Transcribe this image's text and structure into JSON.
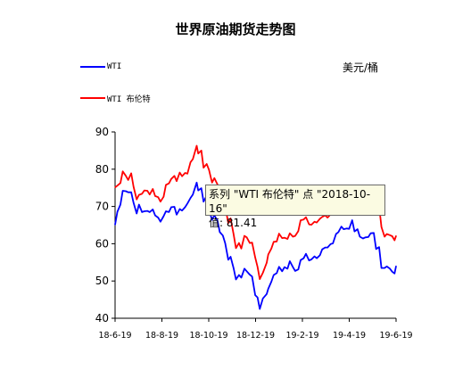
{
  "chart_data": {
    "type": "line",
    "title": "世界原油期货走势图",
    "unit": "美元/桶",
    "xlabel": "",
    "ylabel": "",
    "ylim": [
      40,
      90
    ],
    "yticks": [
      40,
      50,
      60,
      70,
      80,
      90
    ],
    "xticks": [
      "18-6-19",
      "18-8-19",
      "18-10-19",
      "18-12-19",
      "19-2-19",
      "19-4-19",
      "19-6-19"
    ],
    "x_range": [
      "2018-06-19",
      "2019-06-19"
    ],
    "grid": false,
    "legend_position": "top-left",
    "series": [
      {
        "name": "WTI",
        "color": "#0000ff",
        "points": [
          [
            "2018-06-19",
            65.1
          ],
          [
            "2018-06-22",
            68.6
          ],
          [
            "2018-06-26",
            70.5
          ],
          [
            "2018-06-29",
            74.2
          ],
          [
            "2018-07-03",
            74.1
          ],
          [
            "2018-07-06",
            73.8
          ],
          [
            "2018-07-10",
            73.8
          ],
          [
            "2018-07-13",
            71.0
          ],
          [
            "2018-07-17",
            68.1
          ],
          [
            "2018-07-20",
            70.5
          ],
          [
            "2018-07-24",
            68.5
          ],
          [
            "2018-07-27",
            68.7
          ],
          [
            "2018-07-31",
            68.8
          ],
          [
            "2018-08-03",
            68.5
          ],
          [
            "2018-08-07",
            69.2
          ],
          [
            "2018-08-10",
            67.6
          ],
          [
            "2018-08-14",
            67.0
          ],
          [
            "2018-08-17",
            65.9
          ],
          [
            "2018-08-21",
            67.4
          ],
          [
            "2018-08-24",
            68.7
          ],
          [
            "2018-08-28",
            68.5
          ],
          [
            "2018-08-31",
            69.8
          ],
          [
            "2018-09-04",
            69.9
          ],
          [
            "2018-09-07",
            67.8
          ],
          [
            "2018-09-11",
            69.3
          ],
          [
            "2018-09-14",
            68.9
          ],
          [
            "2018-09-18",
            69.8
          ],
          [
            "2018-09-21",
            70.8
          ],
          [
            "2018-09-25",
            72.3
          ],
          [
            "2018-09-28",
            73.2
          ],
          [
            "2018-10-03",
            76.4
          ],
          [
            "2018-10-05",
            74.3
          ],
          [
            "2018-10-09",
            74.9
          ],
          [
            "2018-10-12",
            71.3
          ],
          [
            "2018-10-16",
            72.9
          ],
          [
            "2018-10-19",
            69.1
          ],
          [
            "2018-10-23",
            66.4
          ],
          [
            "2018-10-26",
            67.6
          ],
          [
            "2018-10-30",
            66.2
          ],
          [
            "2018-11-02",
            63.1
          ],
          [
            "2018-11-06",
            62.2
          ],
          [
            "2018-11-09",
            60.2
          ],
          [
            "2018-11-13",
            55.7
          ],
          [
            "2018-11-16",
            56.5
          ],
          [
            "2018-11-20",
            53.4
          ],
          [
            "2018-11-23",
            50.4
          ],
          [
            "2018-11-27",
            51.6
          ],
          [
            "2018-11-30",
            50.9
          ],
          [
            "2018-12-04",
            53.3
          ],
          [
            "2018-12-07",
            52.6
          ],
          [
            "2018-12-11",
            51.7
          ],
          [
            "2018-12-14",
            51.2
          ],
          [
            "2018-12-18",
            46.2
          ],
          [
            "2018-12-21",
            45.6
          ],
          [
            "2018-12-24",
            42.5
          ],
          [
            "2018-12-28",
            45.3
          ],
          [
            "2019-01-02",
            46.5
          ],
          [
            "2019-01-04",
            47.9
          ],
          [
            "2019-01-08",
            49.8
          ],
          [
            "2019-01-11",
            51.6
          ],
          [
            "2019-01-15",
            52.1
          ],
          [
            "2019-01-18",
            53.8
          ],
          [
            "2019-01-22",
            52.6
          ],
          [
            "2019-01-25",
            53.7
          ],
          [
            "2019-01-29",
            53.3
          ],
          [
            "2019-02-01",
            55.3
          ],
          [
            "2019-02-05",
            53.7
          ],
          [
            "2019-02-08",
            52.7
          ],
          [
            "2019-02-12",
            53.1
          ],
          [
            "2019-02-15",
            55.6
          ],
          [
            "2019-02-19",
            56.1
          ],
          [
            "2019-02-22",
            57.3
          ],
          [
            "2019-02-26",
            55.5
          ],
          [
            "2019-03-01",
            55.8
          ],
          [
            "2019-03-05",
            56.6
          ],
          [
            "2019-03-08",
            56.1
          ],
          [
            "2019-03-12",
            56.9
          ],
          [
            "2019-03-15",
            58.5
          ],
          [
            "2019-03-19",
            59.0
          ],
          [
            "2019-03-22",
            59.0
          ],
          [
            "2019-03-26",
            59.9
          ],
          [
            "2019-03-29",
            60.1
          ],
          [
            "2019-04-02",
            62.6
          ],
          [
            "2019-04-05",
            63.1
          ],
          [
            "2019-04-09",
            64.6
          ],
          [
            "2019-04-12",
            63.9
          ],
          [
            "2019-04-16",
            64.1
          ],
          [
            "2019-04-19",
            64.0
          ],
          [
            "2019-04-23",
            66.3
          ],
          [
            "2019-04-26",
            63.3
          ],
          [
            "2019-04-30",
            63.9
          ],
          [
            "2019-05-03",
            61.9
          ],
          [
            "2019-05-07",
            61.4
          ],
          [
            "2019-05-10",
            61.7
          ],
          [
            "2019-05-14",
            61.8
          ],
          [
            "2019-05-17",
            62.8
          ],
          [
            "2019-05-21",
            62.9
          ],
          [
            "2019-05-24",
            58.6
          ],
          [
            "2019-05-28",
            59.1
          ],
          [
            "2019-05-31",
            53.5
          ],
          [
            "2019-06-04",
            53.5
          ],
          [
            "2019-06-07",
            53.9
          ],
          [
            "2019-06-11",
            53.3
          ],
          [
            "2019-06-14",
            52.5
          ],
          [
            "2019-06-17",
            52.0
          ],
          [
            "2019-06-19",
            54.0
          ]
        ]
      },
      {
        "name": "WTI 布伦特",
        "color": "#ff0000",
        "points": [
          [
            "2018-06-19",
            75.1
          ],
          [
            "2018-06-22",
            75.6
          ],
          [
            "2018-06-26",
            76.3
          ],
          [
            "2018-06-29",
            79.4
          ],
          [
            "2018-07-03",
            78.2
          ],
          [
            "2018-07-06",
            77.1
          ],
          [
            "2018-07-10",
            78.9
          ],
          [
            "2018-07-13",
            75.3
          ],
          [
            "2018-07-17",
            71.9
          ],
          [
            "2018-07-20",
            73.1
          ],
          [
            "2018-07-24",
            73.4
          ],
          [
            "2018-07-27",
            74.3
          ],
          [
            "2018-07-31",
            74.2
          ],
          [
            "2018-08-03",
            73.2
          ],
          [
            "2018-08-07",
            74.7
          ],
          [
            "2018-08-10",
            72.8
          ],
          [
            "2018-08-14",
            72.5
          ],
          [
            "2018-08-17",
            71.3
          ],
          [
            "2018-08-21",
            72.6
          ],
          [
            "2018-08-24",
            75.8
          ],
          [
            "2018-08-28",
            76.2
          ],
          [
            "2018-08-31",
            77.4
          ],
          [
            "2018-09-04",
            78.2
          ],
          [
            "2018-09-07",
            76.8
          ],
          [
            "2018-09-11",
            79.1
          ],
          [
            "2018-09-14",
            78.1
          ],
          [
            "2018-09-18",
            79.0
          ],
          [
            "2018-09-21",
            78.8
          ],
          [
            "2018-09-25",
            81.9
          ],
          [
            "2018-09-28",
            82.7
          ],
          [
            "2018-10-03",
            86.3
          ],
          [
            "2018-10-05",
            84.2
          ],
          [
            "2018-10-09",
            85.0
          ],
          [
            "2018-10-12",
            80.4
          ],
          [
            "2018-10-16",
            81.4
          ],
          [
            "2018-10-19",
            79.8
          ],
          [
            "2018-10-23",
            76.4
          ],
          [
            "2018-10-26",
            77.6
          ],
          [
            "2018-10-30",
            75.9
          ],
          [
            "2018-11-02",
            72.8
          ],
          [
            "2018-11-06",
            72.1
          ],
          [
            "2018-11-09",
            70.2
          ],
          [
            "2018-11-13",
            65.5
          ],
          [
            "2018-11-16",
            66.8
          ],
          [
            "2018-11-20",
            62.5
          ],
          [
            "2018-11-23",
            58.8
          ],
          [
            "2018-11-27",
            60.2
          ],
          [
            "2018-11-30",
            58.7
          ],
          [
            "2018-12-04",
            62.1
          ],
          [
            "2018-12-07",
            61.7
          ],
          [
            "2018-12-11",
            60.2
          ],
          [
            "2018-12-14",
            60.3
          ],
          [
            "2018-12-18",
            56.3
          ],
          [
            "2018-12-21",
            53.8
          ],
          [
            "2018-12-24",
            50.5
          ],
          [
            "2018-12-28",
            52.2
          ],
          [
            "2019-01-02",
            54.9
          ],
          [
            "2019-01-04",
            57.1
          ],
          [
            "2019-01-08",
            58.7
          ],
          [
            "2019-01-11",
            60.5
          ],
          [
            "2019-01-15",
            60.6
          ],
          [
            "2019-01-18",
            62.7
          ],
          [
            "2019-01-22",
            61.5
          ],
          [
            "2019-01-25",
            61.6
          ],
          [
            "2019-01-29",
            61.3
          ],
          [
            "2019-02-01",
            62.8
          ],
          [
            "2019-02-05",
            61.9
          ],
          [
            "2019-02-08",
            62.1
          ],
          [
            "2019-02-12",
            63.4
          ],
          [
            "2019-02-15",
            66.3
          ],
          [
            "2019-02-19",
            66.5
          ],
          [
            "2019-02-22",
            67.1
          ],
          [
            "2019-02-26",
            65.2
          ],
          [
            "2019-03-01",
            65.1
          ],
          [
            "2019-03-05",
            65.9
          ],
          [
            "2019-03-08",
            65.7
          ],
          [
            "2019-03-12",
            66.7
          ],
          [
            "2019-03-15",
            67.2
          ],
          [
            "2019-03-19",
            67.6
          ],
          [
            "2019-03-22",
            67.0
          ],
          [
            "2019-03-26",
            67.9
          ],
          [
            "2019-03-29",
            68.4
          ],
          [
            "2019-04-02",
            69.4
          ],
          [
            "2019-04-05",
            70.3
          ],
          [
            "2019-04-09",
            71.0
          ],
          [
            "2019-04-12",
            71.5
          ],
          [
            "2019-04-16",
            71.7
          ],
          [
            "2019-04-19",
            71.6
          ],
          [
            "2019-04-23",
            74.5
          ],
          [
            "2019-04-26",
            72.2
          ],
          [
            "2019-04-30",
            72.8
          ],
          [
            "2019-05-03",
            70.8
          ],
          [
            "2019-05-07",
            69.9
          ],
          [
            "2019-05-10",
            70.6
          ],
          [
            "2019-05-14",
            71.2
          ],
          [
            "2019-05-17",
            72.2
          ],
          [
            "2019-05-21",
            72.2
          ],
          [
            "2019-05-24",
            68.7
          ],
          [
            "2019-05-28",
            70.1
          ],
          [
            "2019-05-31",
            64.5
          ],
          [
            "2019-06-04",
            61.9
          ],
          [
            "2019-06-07",
            62.6
          ],
          [
            "2019-06-11",
            62.3
          ],
          [
            "2019-06-14",
            62.0
          ],
          [
            "2019-06-17",
            60.9
          ],
          [
            "2019-06-19",
            62.1
          ]
        ]
      }
    ],
    "tooltip": {
      "line1": "系列 \"WTI 布伦特\" 点 \"2018-10-16\"",
      "line2": "值: 81.41"
    }
  }
}
